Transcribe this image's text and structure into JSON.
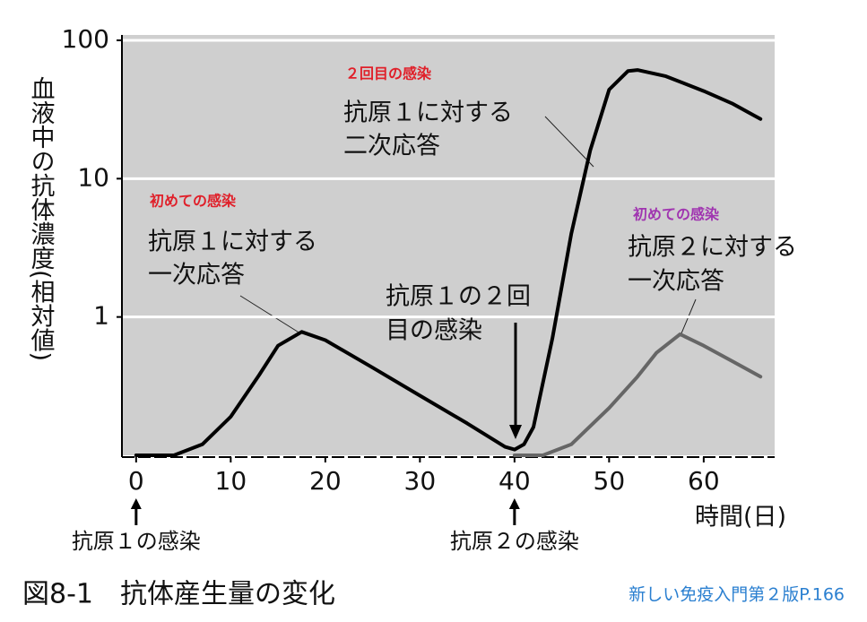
{
  "chart_data": {
    "type": "line",
    "log_y": true,
    "grid": true,
    "background": "#cfcfcf",
    "ylabel": "血液中の抗体濃度(相対値)",
    "xlabel": "時間(日)",
    "xlim": [
      -1.5,
      67.5
    ],
    "xticks": [
      0,
      10,
      20,
      30,
      40,
      50,
      60
    ],
    "ylim": [
      0.1,
      100
    ],
    "yticks": [
      1,
      10,
      100
    ],
    "series": [
      {
        "color": "#000000",
        "x": [
          0,
          4,
          7,
          10,
          13,
          15,
          17.5,
          20,
          25,
          30,
          35,
          39,
          40,
          41,
          42,
          44,
          46,
          48,
          50,
          52,
          53,
          56,
          60,
          63,
          66
        ],
        "values": [
          0.1,
          0.1,
          0.12,
          0.19,
          0.38,
          0.62,
          0.78,
          0.68,
          0.43,
          0.27,
          0.17,
          0.115,
          0.11,
          0.12,
          0.16,
          0.7,
          4,
          16,
          44,
          60,
          61,
          55,
          43,
          35,
          27
        ]
      },
      {
        "color": "#666666",
        "x": [
          40,
          43,
          46,
          50,
          53,
          55,
          57.5,
          60,
          63,
          66
        ],
        "values": [
          0.1,
          0.1,
          0.12,
          0.22,
          0.37,
          0.55,
          0.75,
          0.62,
          0.48,
          0.37
        ]
      }
    ],
    "events": [
      {
        "x": 0,
        "label": "抗原１の感染"
      },
      {
        "x": 40,
        "label": "抗原２の感染"
      }
    ],
    "annotations": [
      {
        "lines": [
          "２回目の感染"
        ],
        "color": "#e0202a"
      },
      {
        "lines": [
          "抗原１に対する",
          "二次応答"
        ],
        "color": "#111111"
      },
      {
        "lines": [
          "初めての感染"
        ],
        "color": "#e0202a"
      },
      {
        "lines": [
          "抗原１に対する",
          "一次応答"
        ],
        "color": "#111111"
      },
      {
        "lines": [
          "抗原１の２回",
          "目の感染"
        ],
        "color": "#111111"
      },
      {
        "lines": [
          "初めての感染"
        ],
        "color": "#a035b0"
      },
      {
        "lines": [
          "抗原２に対する",
          "一次応答"
        ],
        "color": "#111111"
      }
    ],
    "caption": "図8-1　抗体産生量の変化",
    "source": "新しい免疫入門第２版P.166"
  }
}
